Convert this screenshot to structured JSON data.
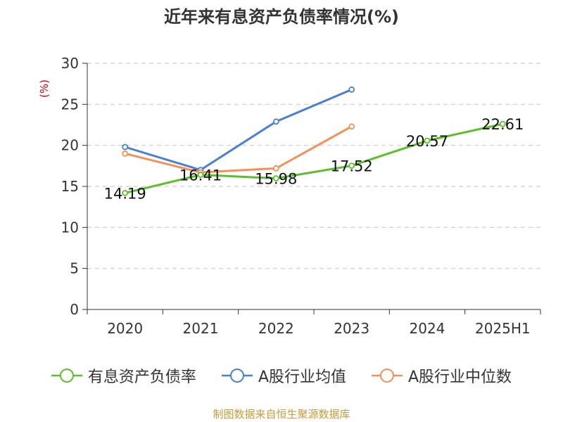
{
  "title": "近年来有息资产负债率情况(%)",
  "y_unit_label": "(%)",
  "source": "制图数据来自恒生聚源数据库",
  "colors": {
    "main": "#5cbf2a",
    "industry_avg": "#4a7fd6",
    "industry_median": "#f4915a",
    "unit_label": "#cc0000",
    "grid": "#cccccc",
    "axis": "#333333"
  },
  "chart_data": {
    "type": "line",
    "categories": [
      "2020",
      "2021",
      "2022",
      "2023",
      "2024",
      "2025H1"
    ],
    "ylim": [
      0,
      30
    ],
    "yticks": [
      0,
      5,
      10,
      15,
      20,
      25,
      30
    ],
    "grid": true,
    "legend_position": "bottom",
    "series": [
      {
        "name": "有息资产负债率",
        "color_key": "main",
        "values": [
          14.19,
          16.41,
          15.98,
          17.52,
          20.57,
          22.61
        ],
        "labels": true
      },
      {
        "name": "A股行业均值",
        "color_key": "industry_avg",
        "values": [
          19.8,
          17.0,
          22.9,
          26.8,
          null,
          null
        ],
        "labels": false
      },
      {
        "name": "A股行业中位数",
        "color_key": "industry_median",
        "values": [
          19.0,
          16.7,
          17.2,
          22.3,
          null,
          null
        ],
        "labels": false
      }
    ]
  }
}
